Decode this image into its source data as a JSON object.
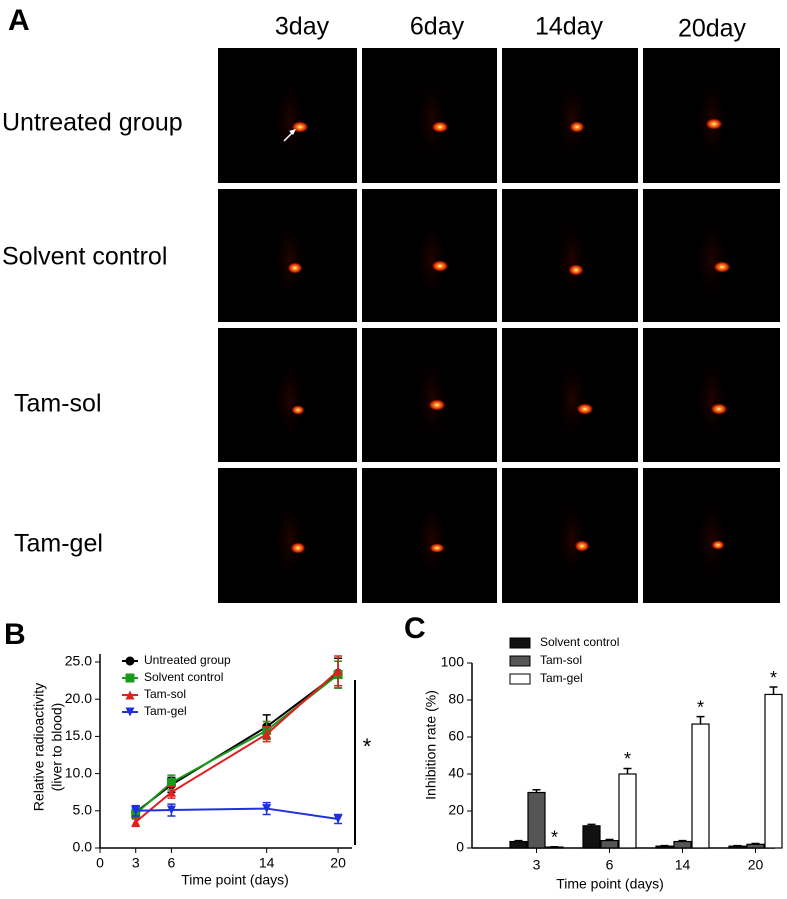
{
  "panel_a": {
    "label": "A",
    "columns": [
      "3day",
      "6day",
      "14day",
      "20day"
    ],
    "rows": [
      "Untreated group",
      "Solvent control",
      "Tam-sol",
      "Tam-gel"
    ]
  },
  "chart_data": [
    {
      "type": "line",
      "label": "B",
      "xlabel": "Time point (days)",
      "ylabel": [
        "Relative radioactivity",
        "(liver to blood)"
      ],
      "x": [
        3,
        6,
        14,
        20
      ],
      "xlim": [
        0,
        21
      ],
      "xticks": [
        0,
        3,
        6,
        14,
        20
      ],
      "ylim": [
        0,
        25
      ],
      "yticks": [
        {
          "value": 0,
          "label": "0.0"
        },
        {
          "value": 5,
          "label": "5.0"
        },
        {
          "value": 10,
          "label": "10.0"
        },
        {
          "value": 15,
          "label": "15.0"
        },
        {
          "value": 20,
          "label": "20.0"
        },
        {
          "value": 25,
          "label": "25.0"
        }
      ],
      "annotation": "*",
      "series": [
        {
          "name": "Untreated group",
          "color": "#000000",
          "marker": "circle",
          "values": [
            4.8,
            8.5,
            16.3,
            23.5
          ],
          "errors": [
            0.8,
            1.0,
            1.6,
            2.0
          ]
        },
        {
          "name": "Solvent control",
          "color": "#1a9a1a",
          "marker": "square",
          "values": [
            4.6,
            8.8,
            15.8,
            23.3
          ],
          "errors": [
            0.7,
            1.0,
            1.2,
            1.8
          ]
        },
        {
          "name": "Tam-sol",
          "color": "#e02020",
          "marker": "triangle-up",
          "values": [
            3.5,
            7.5,
            15.3,
            23.8
          ],
          "errors": [
            0.6,
            0.8,
            1.0,
            2.0
          ]
        },
        {
          "name": "Tam-gel",
          "color": "#2030e0",
          "marker": "triangle-down",
          "values": [
            5.0,
            5.1,
            5.3,
            3.9
          ],
          "errors": [
            0.7,
            0.8,
            0.8,
            0.6
          ]
        }
      ]
    },
    {
      "type": "bar",
      "label": "C",
      "xlabel": "Time point (days)",
      "ylabel": "Inhibition rate (%)",
      "categories": [
        "3",
        "6",
        "14",
        "20"
      ],
      "ylim": [
        0,
        100
      ],
      "yticks": [
        0,
        20,
        40,
        60,
        80,
        100
      ],
      "series": [
        {
          "name": "Solvent control",
          "color": "#111111",
          "values": [
            3.5,
            12,
            1,
            1
          ],
          "errors": [
            0.5,
            0.8,
            0.3,
            0.3
          ]
        },
        {
          "name": "Tam-sol",
          "color": "#555555",
          "values": [
            30,
            4,
            3.5,
            2
          ],
          "errors": [
            1.5,
            0.6,
            0.5,
            0.4
          ]
        },
        {
          "name": "Tam-gel",
          "color": "#ffffff",
          "values": [
            0.5,
            40,
            67,
            83
          ],
          "errors": [
            0.2,
            3,
            4,
            4
          ],
          "significance": [
            "*",
            "*",
            "*",
            "*"
          ]
        }
      ]
    }
  ]
}
